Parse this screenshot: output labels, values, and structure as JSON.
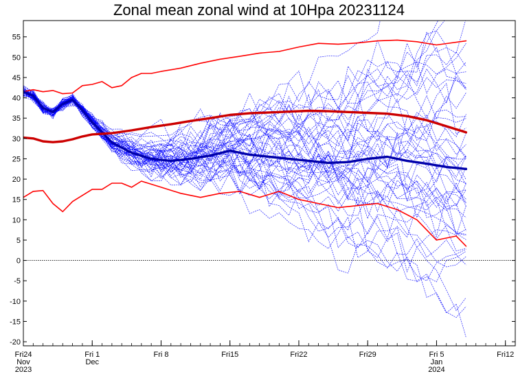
{
  "chart_data": {
    "type": "line",
    "title": "Zonal mean zonal wind at 10Hpa 20231124",
    "xlabel": "",
    "ylabel": "",
    "ylim": [
      -21,
      59
    ],
    "y_ticks": [
      -20,
      -15,
      -10,
      -5,
      0,
      5,
      10,
      15,
      20,
      25,
      30,
      35,
      40,
      45,
      50,
      55
    ],
    "x_start": "2023-11-24",
    "x_end": "2024-01-13",
    "x_ticks": [
      {
        "date": "2023-11-24",
        "lines": [
          "Fri24",
          "Nov",
          "2023"
        ]
      },
      {
        "date": "2023-12-01",
        "lines": [
          "Fri 1",
          "Dec"
        ]
      },
      {
        "date": "2023-12-08",
        "lines": [
          "Fri 8"
        ]
      },
      {
        "date": "2023-12-15",
        "lines": [
          "Fri15"
        ]
      },
      {
        "date": "2023-12-22",
        "lines": [
          "Fri22"
        ]
      },
      {
        "date": "2023-12-29",
        "lines": [
          "Fri29"
        ]
      },
      {
        "date": "2024-01-05",
        "lines": [
          "Fri 5",
          "Jan",
          "2024"
        ]
      },
      {
        "date": "2024-01-12",
        "lines": [
          "Fri12"
        ]
      }
    ],
    "reference_line": {
      "y": 0,
      "style": "dotted",
      "color": "#000000"
    },
    "ensemble_color": "#0000ff",
    "ensemble_member_count": 50,
    "series": [
      {
        "role": "forecast-mean",
        "color": "#0000aa",
        "x": [
          "2023-11-24",
          "2023-11-25",
          "2023-11-26",
          "2023-11-27",
          "2023-11-28",
          "2023-11-29",
          "2023-11-30",
          "2023-12-01",
          "2023-12-03",
          "2023-12-05",
          "2023-12-07",
          "2023-12-09",
          "2023-12-11",
          "2023-12-13",
          "2023-12-15",
          "2023-12-17",
          "2023-12-19",
          "2023-12-21",
          "2023-12-23",
          "2023-12-25",
          "2023-12-27",
          "2023-12-29",
          "2023-12-31",
          "2024-01-02",
          "2024-01-04",
          "2024-01-06",
          "2024-01-08"
        ],
        "y": [
          41.5,
          40.5,
          37.5,
          36.5,
          38.5,
          39.5,
          37,
          34,
          29,
          26.5,
          25,
          24.5,
          25,
          25.8,
          27,
          26,
          25.5,
          25,
          24.5,
          24,
          24.2,
          25,
          25.5,
          24.5,
          23.8,
          23,
          22.5
        ]
      },
      {
        "role": "climatology-mean",
        "color": "#cc0000",
        "x": [
          "2023-11-24",
          "2023-11-25",
          "2023-11-26",
          "2023-11-27",
          "2023-11-28",
          "2023-11-29",
          "2023-11-30",
          "2023-12-01",
          "2023-12-03",
          "2023-12-05",
          "2023-12-07",
          "2023-12-09",
          "2023-12-11",
          "2023-12-13",
          "2023-12-15",
          "2023-12-17",
          "2023-12-19",
          "2023-12-21",
          "2023-12-23",
          "2023-12-25",
          "2023-12-27",
          "2023-12-29",
          "2023-12-31",
          "2024-01-02",
          "2024-01-04",
          "2024-01-06",
          "2024-01-08"
        ],
        "y": [
          30.2,
          30,
          29.3,
          29.1,
          29.3,
          29.8,
          30.5,
          31,
          31.3,
          32,
          32.8,
          33.5,
          34.3,
          35,
          35.8,
          36.2,
          36.4,
          36.6,
          36.8,
          36.7,
          36.5,
          36.3,
          36.1,
          35.5,
          34.5,
          33,
          31.5
        ]
      },
      {
        "role": "climatology-max",
        "color": "#ff0000",
        "x": [
          "2023-11-24",
          "2023-11-25",
          "2023-11-26",
          "2023-11-27",
          "2023-11-28",
          "2023-11-29",
          "2023-11-30",
          "2023-12-01",
          "2023-12-02",
          "2023-12-03",
          "2023-12-04",
          "2023-12-05",
          "2023-12-06",
          "2023-12-07",
          "2023-12-08",
          "2023-12-10",
          "2023-12-12",
          "2023-12-14",
          "2023-12-16",
          "2023-12-18",
          "2023-12-20",
          "2023-12-22",
          "2023-12-24",
          "2023-12-26",
          "2023-12-28",
          "2023-12-30",
          "2024-01-01",
          "2024-01-03",
          "2024-01-05",
          "2024-01-08"
        ],
        "y": [
          41.5,
          42,
          41.5,
          41.8,
          41,
          41.2,
          43,
          43.3,
          44,
          42.5,
          43,
          45,
          46,
          46,
          46.5,
          47.3,
          48.5,
          49.5,
          50.2,
          51,
          51.4,
          52.5,
          53.4,
          53.2,
          53.5,
          54,
          54.2,
          53.8,
          53,
          54
        ]
      },
      {
        "role": "climatology-min",
        "color": "#ff0000",
        "x": [
          "2023-11-24",
          "2023-11-25",
          "2023-11-26",
          "2023-11-27",
          "2023-11-28",
          "2023-11-29",
          "2023-11-30",
          "2023-12-01",
          "2023-12-02",
          "2023-12-03",
          "2023-12-04",
          "2023-12-05",
          "2023-12-06",
          "2023-12-08",
          "2023-12-10",
          "2023-12-12",
          "2023-12-14",
          "2023-12-16",
          "2023-12-18",
          "2023-12-20",
          "2023-12-22",
          "2023-12-24",
          "2023-12-26",
          "2023-12-28",
          "2023-12-30",
          "2024-01-01",
          "2024-01-03",
          "2024-01-05",
          "2024-01-07",
          "2024-01-08"
        ],
        "y": [
          15.5,
          17,
          17.2,
          14,
          12,
          14.5,
          16,
          17.5,
          17.5,
          19,
          19,
          18,
          19.5,
          18,
          16.5,
          15.5,
          16.5,
          17,
          15.5,
          17,
          15,
          14,
          13,
          13.5,
          14,
          12.5,
          10,
          5,
          6,
          3.5
        ]
      }
    ]
  }
}
